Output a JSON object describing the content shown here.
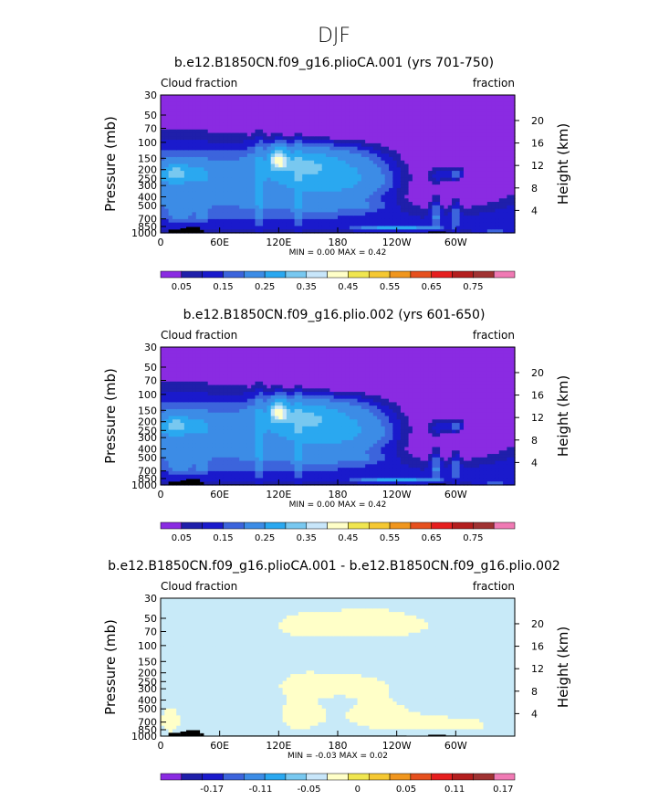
{
  "suptitle": "DJF",
  "ui_colors": {
    "background": "#ffffff",
    "frame": "#000000",
    "terrain": "#000000"
  },
  "colormaps": {
    "abs": [
      "#8a2be2",
      "#1f1faa",
      "#1a1acc",
      "#3c64dc",
      "#3c8ce6",
      "#2aa8f0",
      "#78c8f0",
      "#c8e6fa",
      "#ffffc8",
      "#f0e650",
      "#f5c832",
      "#f0961e",
      "#e6501e",
      "#e61e1e",
      "#b41e1e",
      "#a03232",
      "#f07ab4"
    ],
    "diff": [
      "#8a2be2",
      "#1f1faa",
      "#1a1acc",
      "#3c64dc",
      "#3c8ce6",
      "#2aa8f0",
      "#78c8f0",
      "#c8e6fa",
      "#ffffc8",
      "#f0e650",
      "#f5c832",
      "#f0961e",
      "#e6501e",
      "#e61e1e",
      "#b41e1e",
      "#a03232",
      "#f07ab4"
    ]
  },
  "chart_data": [
    {
      "type": "heatmap",
      "title": "b.e12.B1850CN.f09_g16.plioCA.001 (yrs 701-750)",
      "left_label": "Cloud fraction",
      "right_label": "fraction",
      "ylabel": "Pressure (mb)",
      "ylabel_right": "Height (km)",
      "xticks": [
        "0",
        "60E",
        "120E",
        "180",
        "120W",
        "60W"
      ],
      "xtick_lon": [
        0,
        60,
        120,
        180,
        240,
        300
      ],
      "xlim": [
        0,
        360
      ],
      "yticks": [
        "30",
        "50",
        "70",
        "100",
        "150",
        "200",
        "250",
        "300",
        "400",
        "500",
        "700",
        "850",
        "1000"
      ],
      "ytick_p": [
        30,
        50,
        70,
        100,
        150,
        200,
        250,
        300,
        400,
        500,
        700,
        850,
        1000
      ],
      "ylim": [
        1000,
        30
      ],
      "right_ticks": [
        "20",
        "16",
        "12",
        "8",
        "4"
      ],
      "right_ticks_km": [
        20,
        16,
        12,
        8,
        4
      ],
      "minmax_text": "MIN =    0.00   MAX =    0.42",
      "cmap": "abs",
      "colorbar_labels": [
        "0.05",
        "0.15",
        "0.25",
        "0.35",
        "0.45",
        "0.55",
        "0.65",
        "0.75"
      ],
      "levels": [
        0.025,
        0.05,
        0.075,
        0.1,
        0.15,
        0.2,
        0.25,
        0.3,
        0.35,
        0.4
      ],
      "features": [
        {
          "kind": "bg",
          "v": 0.12
        },
        {
          "kind": "blob",
          "lon": 180,
          "p": 240,
          "slon": 75,
          "sp": 140,
          "v": 0.06
        },
        {
          "kind": "blob",
          "lon": 15,
          "p": 220,
          "slon": 14,
          "sp": 55,
          "v": 0.12
        },
        {
          "kind": "blob",
          "lon": 140,
          "p": 170,
          "slon": 40,
          "sp": 60,
          "v": 0.08
        },
        {
          "kind": "blob",
          "lon": 170,
          "p": 500,
          "slon": 55,
          "sp": 60,
          "v": 0.04
        },
        {
          "kind": "blob",
          "lon": 40,
          "p": 220,
          "slon": 12,
          "sp": 70,
          "v": 0.05
        },
        {
          "kind": "blob",
          "lon": 120,
          "p": 155,
          "slon": 8,
          "sp": 40,
          "v": 0.18
        },
        {
          "kind": "blob",
          "lon": 100,
          "p": 450,
          "slon": 4,
          "sp": 400,
          "v": 0.06
        },
        {
          "kind": "blob",
          "lon": 140,
          "p": 450,
          "slon": 4,
          "sp": 400,
          "v": 0.05
        },
        {
          "kind": "blob",
          "lon": 20,
          "p": 570,
          "slon": 10,
          "sp": 180,
          "v": 0.05
        },
        {
          "kind": "blob",
          "lon": 42,
          "p": 600,
          "slon": 6,
          "sp": 150,
          "v": 0.05
        },
        {
          "kind": "blob",
          "lon": 240,
          "p": 880,
          "slon": 35,
          "sp": 50,
          "v": 0.14
        },
        {
          "kind": "blob",
          "lon": 290,
          "p": 230,
          "slon": 18,
          "sp": 60,
          "v": 0.1
        },
        {
          "kind": "blob",
          "lon": 305,
          "p": 220,
          "slon": 10,
          "sp": 40,
          "v": 0.06
        },
        {
          "kind": "blob",
          "lon": 280,
          "p": 550,
          "slon": 6,
          "sp": 300,
          "v": 0.07
        },
        {
          "kind": "blob",
          "lon": 300,
          "p": 550,
          "slon": 5,
          "sp": 300,
          "v": 0.06
        },
        {
          "kind": "blob",
          "lon": 340,
          "p": 950,
          "slon": 15,
          "sp": 60,
          "v": 0.04
        },
        {
          "kind": "clear",
          "lon": 275,
          "p": 300,
          "slon": 55,
          "sp": 300,
          "v": 0.12
        },
        {
          "kind": "clear",
          "lon": 340,
          "p": 200,
          "slon": 60,
          "sp": 300,
          "v": 0.12
        },
        {
          "kind": "clear",
          "lon": 200,
          "p": 50,
          "slon": 100,
          "sp": 40,
          "v": 0.12
        }
      ]
    },
    {
      "type": "heatmap",
      "title": "b.e12.B1850CN.f09_g16.plio.002 (yrs 601-650)",
      "left_label": "Cloud fraction",
      "right_label": "fraction",
      "ylabel": "Pressure (mb)",
      "ylabel_right": "Height (km)",
      "xticks": [
        "0",
        "60E",
        "120E",
        "180",
        "120W",
        "60W"
      ],
      "xtick_lon": [
        0,
        60,
        120,
        180,
        240,
        300
      ],
      "xlim": [
        0,
        360
      ],
      "yticks": [
        "30",
        "50",
        "70",
        "100",
        "150",
        "200",
        "250",
        "300",
        "400",
        "500",
        "700",
        "850",
        "1000"
      ],
      "ytick_p": [
        30,
        50,
        70,
        100,
        150,
        200,
        250,
        300,
        400,
        500,
        700,
        850,
        1000
      ],
      "ylim": [
        1000,
        30
      ],
      "right_ticks": [
        "20",
        "16",
        "12",
        "8",
        "4"
      ],
      "right_ticks_km": [
        20,
        16,
        12,
        8,
        4
      ],
      "minmax_text": "MIN =    0.00   MAX =    0.42",
      "cmap": "abs",
      "colorbar_labels": [
        "0.05",
        "0.15",
        "0.25",
        "0.35",
        "0.45",
        "0.55",
        "0.65",
        "0.75"
      ],
      "levels": [
        0.025,
        0.05,
        0.075,
        0.1,
        0.15,
        0.2,
        0.25,
        0.3,
        0.35,
        0.4
      ],
      "features": [
        {
          "kind": "bg",
          "v": 0.12
        },
        {
          "kind": "blob",
          "lon": 180,
          "p": 240,
          "slon": 75,
          "sp": 140,
          "v": 0.06
        },
        {
          "kind": "blob",
          "lon": 15,
          "p": 220,
          "slon": 14,
          "sp": 55,
          "v": 0.12
        },
        {
          "kind": "blob",
          "lon": 140,
          "p": 170,
          "slon": 40,
          "sp": 60,
          "v": 0.08
        },
        {
          "kind": "blob",
          "lon": 170,
          "p": 500,
          "slon": 55,
          "sp": 60,
          "v": 0.04
        },
        {
          "kind": "blob",
          "lon": 40,
          "p": 220,
          "slon": 12,
          "sp": 70,
          "v": 0.05
        },
        {
          "kind": "blob",
          "lon": 120,
          "p": 155,
          "slon": 8,
          "sp": 40,
          "v": 0.18
        },
        {
          "kind": "blob",
          "lon": 100,
          "p": 450,
          "slon": 4,
          "sp": 400,
          "v": 0.06
        },
        {
          "kind": "blob",
          "lon": 140,
          "p": 450,
          "slon": 4,
          "sp": 400,
          "v": 0.05
        },
        {
          "kind": "blob",
          "lon": 20,
          "p": 570,
          "slon": 10,
          "sp": 180,
          "v": 0.05
        },
        {
          "kind": "blob",
          "lon": 42,
          "p": 600,
          "slon": 6,
          "sp": 150,
          "v": 0.05
        },
        {
          "kind": "blob",
          "lon": 240,
          "p": 880,
          "slon": 35,
          "sp": 50,
          "v": 0.13
        },
        {
          "kind": "blob",
          "lon": 290,
          "p": 230,
          "slon": 18,
          "sp": 60,
          "v": 0.1
        },
        {
          "kind": "blob",
          "lon": 305,
          "p": 220,
          "slon": 10,
          "sp": 40,
          "v": 0.06
        },
        {
          "kind": "blob",
          "lon": 280,
          "p": 550,
          "slon": 6,
          "sp": 300,
          "v": 0.07
        },
        {
          "kind": "blob",
          "lon": 300,
          "p": 550,
          "slon": 5,
          "sp": 300,
          "v": 0.06
        },
        {
          "kind": "blob",
          "lon": 340,
          "p": 950,
          "slon": 15,
          "sp": 60,
          "v": 0.04
        },
        {
          "kind": "clear",
          "lon": 275,
          "p": 300,
          "slon": 55,
          "sp": 300,
          "v": 0.12
        },
        {
          "kind": "clear",
          "lon": 340,
          "p": 200,
          "slon": 60,
          "sp": 300,
          "v": 0.12
        },
        {
          "kind": "clear",
          "lon": 200,
          "p": 50,
          "slon": 100,
          "sp": 40,
          "v": 0.12
        }
      ]
    },
    {
      "type": "heatmap",
      "title": "b.e12.B1850CN.f09_g16.plioCA.001 - b.e12.B1850CN.f09_g16.plio.002",
      "left_label": "Cloud fraction",
      "right_label": "fraction",
      "ylabel": "Pressure (mb)",
      "ylabel_right": "Height (km)",
      "xticks": [
        "0",
        "60E",
        "120E",
        "180",
        "120W",
        "60W"
      ],
      "xtick_lon": [
        0,
        60,
        120,
        180,
        240,
        300
      ],
      "xlim": [
        0,
        360
      ],
      "yticks": [
        "30",
        "50",
        "70",
        "100",
        "150",
        "200",
        "250",
        "300",
        "400",
        "500",
        "700",
        "850",
        "1000"
      ],
      "ytick_p": [
        30,
        50,
        70,
        100,
        150,
        200,
        250,
        300,
        400,
        500,
        700,
        850,
        1000
      ],
      "ylim": [
        1000,
        30
      ],
      "right_ticks": [
        "20",
        "16",
        "12",
        "8",
        "4"
      ],
      "right_ticks_km": [
        20,
        16,
        12,
        8,
        4
      ],
      "minmax_text": "MIN =   -0.03   MAX =    0.02",
      "cmap": "diff",
      "colorbar_labels": [
        "-0.17",
        "-0.11",
        "-0.05",
        "0",
        "0.05",
        "0.11",
        "0.17"
      ],
      "levels": [
        -0.2,
        -0.17,
        -0.14,
        -0.11,
        -0.08,
        -0.05,
        -0.02,
        0,
        0.02,
        0.05,
        0.08,
        0.11,
        0.14,
        0.17,
        0.2
      ],
      "diff_regions": [
        {
          "lon": 10,
          "p": 690,
          "slon": 18,
          "sp": 360,
          "v": 0.01
        },
        {
          "lon": 140,
          "p": 600,
          "slon": 30,
          "sp": 400,
          "v": 0.01
        },
        {
          "lon": 220,
          "p": 580,
          "slon": 50,
          "sp": 380,
          "v": 0.01
        },
        {
          "lon": 170,
          "p": 270,
          "slon": 50,
          "sp": 80,
          "v": 0.01
        },
        {
          "lon": 300,
          "p": 750,
          "slon": 55,
          "sp": 200,
          "v": 0.01
        },
        {
          "lon": 200,
          "p": 60,
          "slon": 120,
          "sp": 30,
          "v": 0.01
        }
      ]
    }
  ]
}
